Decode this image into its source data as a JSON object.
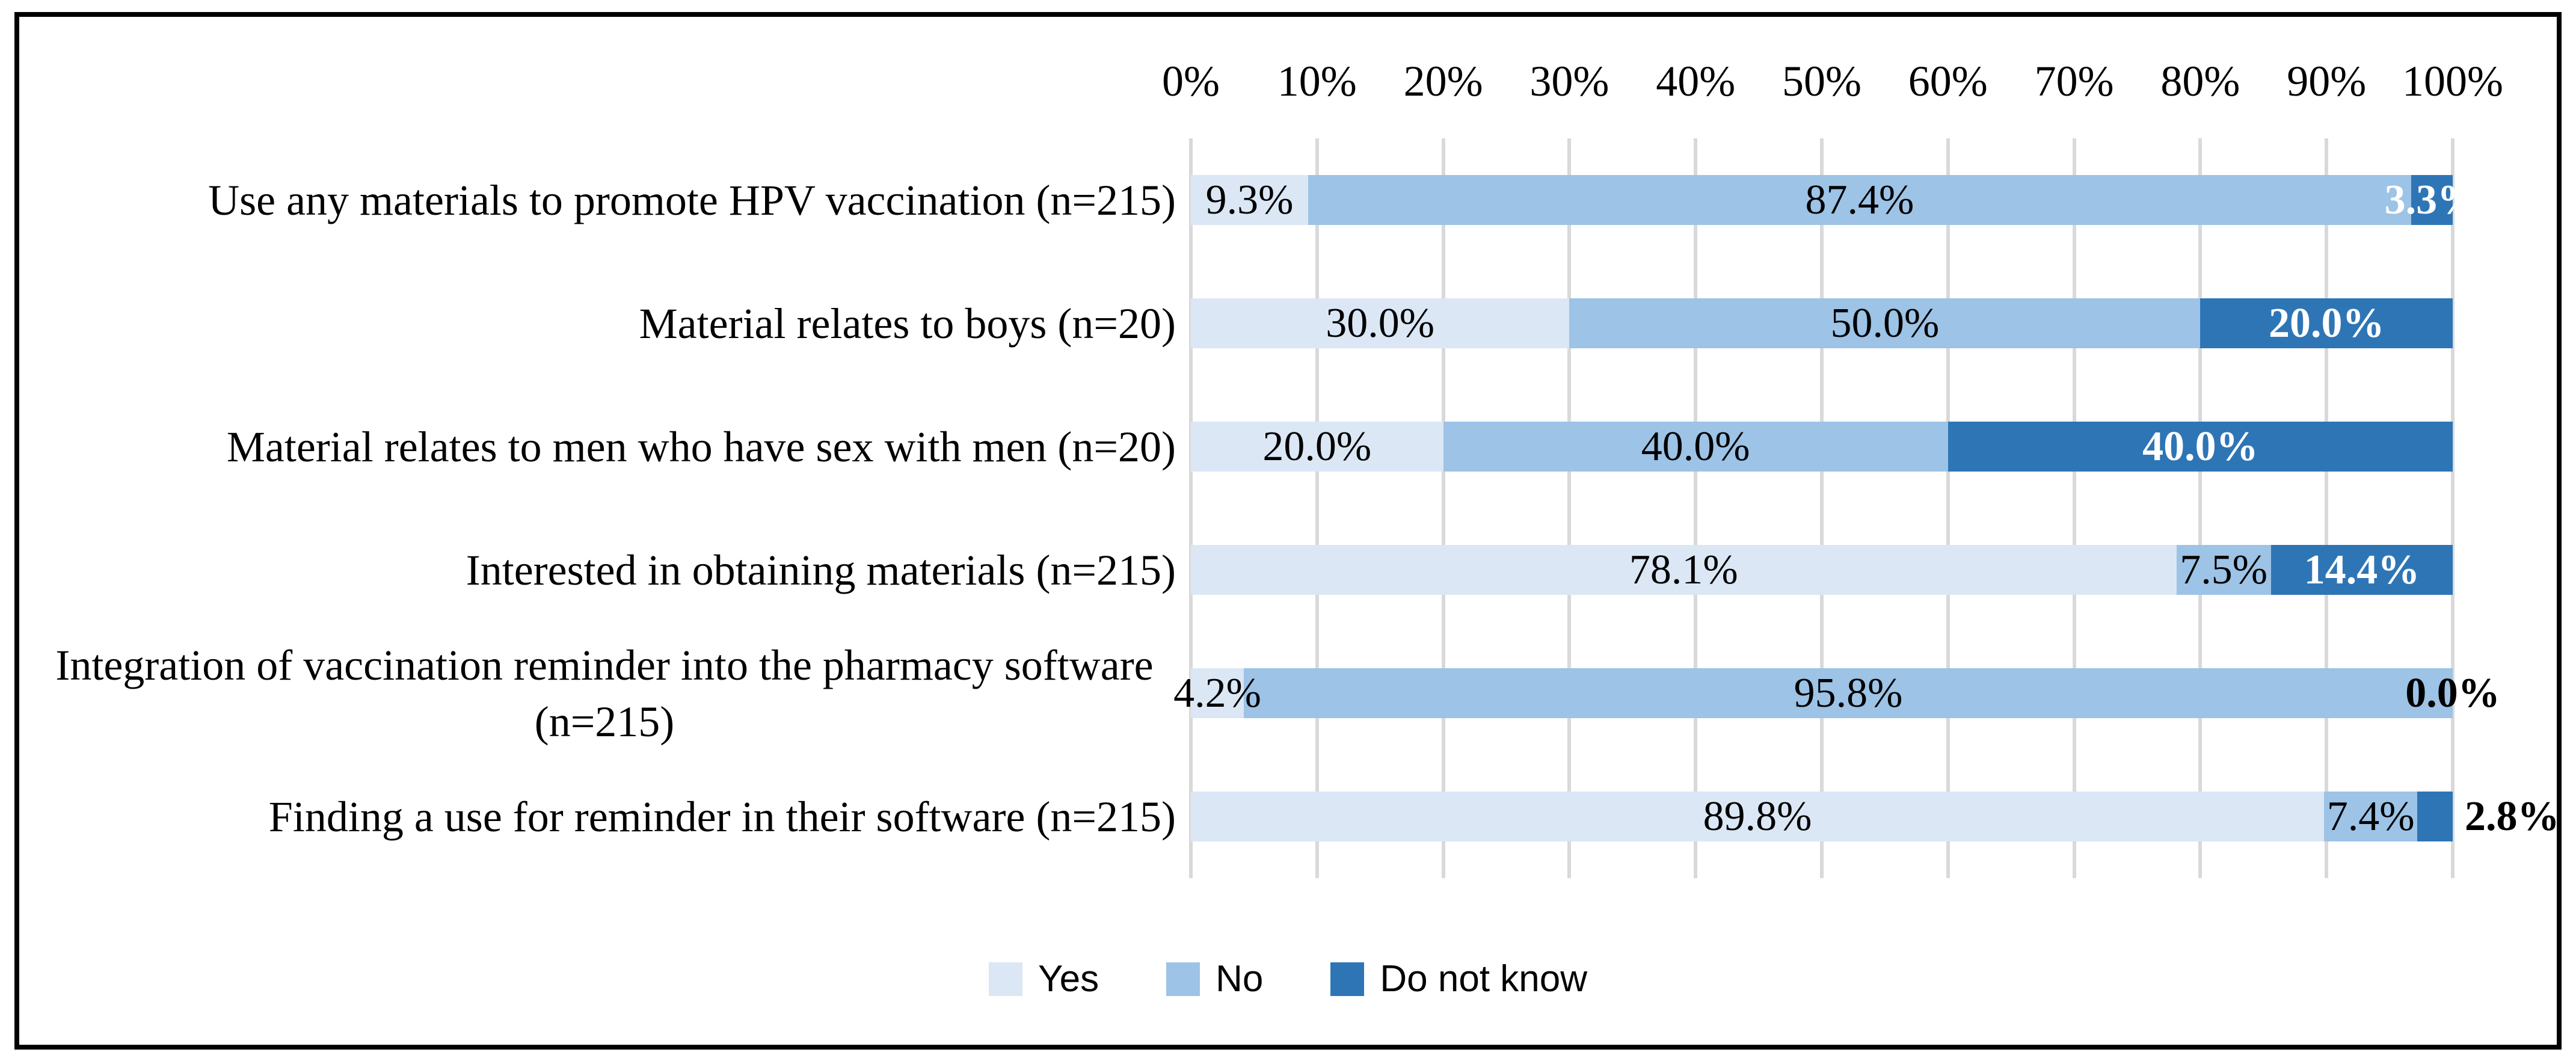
{
  "chart_data": {
    "type": "bar",
    "variant": "horizontal-stacked-100",
    "title": "",
    "categories": [
      "Use any materials to promote HPV vaccination (n=215)",
      "Material relates to boys (n=20)",
      "Material relates to men who have sex with men (n=20)",
      "Interested in obtaining materials (n=215)",
      "Integration of vaccination reminder into the pharmacy software (n=215)",
      "Finding a use for reminder in their software (n=215)"
    ],
    "series": [
      {
        "name": "Yes",
        "color": "#dbe7f4",
        "values": [
          9.3,
          30.0,
          20.0,
          78.1,
          4.2,
          89.8
        ],
        "label_styles": [
          {
            "color": "#000000",
            "bold": false,
            "placement": "center"
          },
          {
            "color": "#000000",
            "bold": false,
            "placement": "center"
          },
          {
            "color": "#000000",
            "bold": false,
            "placement": "center"
          },
          {
            "color": "#000000",
            "bold": false,
            "placement": "center"
          },
          {
            "color": "#000000",
            "bold": false,
            "placement": "center"
          },
          {
            "color": "#000000",
            "bold": false,
            "placement": "center"
          }
        ]
      },
      {
        "name": "No",
        "color": "#9dc3e6",
        "values": [
          87.4,
          50.0,
          40.0,
          7.5,
          95.8,
          7.4
        ],
        "label_styles": [
          {
            "color": "#000000",
            "bold": false,
            "placement": "center"
          },
          {
            "color": "#000000",
            "bold": false,
            "placement": "center"
          },
          {
            "color": "#000000",
            "bold": false,
            "placement": "center"
          },
          {
            "color": "#000000",
            "bold": false,
            "placement": "center"
          },
          {
            "color": "#000000",
            "bold": false,
            "placement": "center"
          },
          {
            "color": "#000000",
            "bold": false,
            "placement": "center"
          }
        ]
      },
      {
        "name": "Do not know",
        "color": "#2e75b6",
        "values": [
          3.3,
          20.0,
          40.0,
          14.4,
          0.0,
          2.8
        ],
        "label_styles": [
          {
            "color": "#ffffff",
            "bold": true,
            "placement": "center"
          },
          {
            "color": "#ffffff",
            "bold": true,
            "placement": "center"
          },
          {
            "color": "#ffffff",
            "bold": true,
            "placement": "center"
          },
          {
            "color": "#ffffff",
            "bold": true,
            "placement": "center"
          },
          {
            "color": "#000000",
            "bold": true,
            "placement": "center"
          },
          {
            "color": "#000000",
            "bold": true,
            "placement": "outside-right"
          }
        ]
      }
    ],
    "x_axis": {
      "position": "top",
      "min": 0,
      "max": 100,
      "ticks": [
        "0%",
        "10%",
        "20%",
        "30%",
        "40%",
        "50%",
        "60%",
        "70%",
        "80%",
        "90%",
        "100%"
      ]
    },
    "grid": {
      "vertical": true,
      "color": "#d9d9d9"
    },
    "legend": {
      "position": "bottom",
      "items": [
        {
          "label": "Yes",
          "color": "#dbe7f4"
        },
        {
          "label": "No",
          "color": "#9dc3e6"
        },
        {
          "label": "Do not know",
          "color": "#2e75b6"
        }
      ]
    },
    "value_suffix": "%",
    "decimals": 1
  },
  "colors": {
    "background": "#ffffff",
    "frame_border": "#000000",
    "grid": "#d9d9d9",
    "label_dark": "#000000",
    "label_light": "#ffffff"
  }
}
